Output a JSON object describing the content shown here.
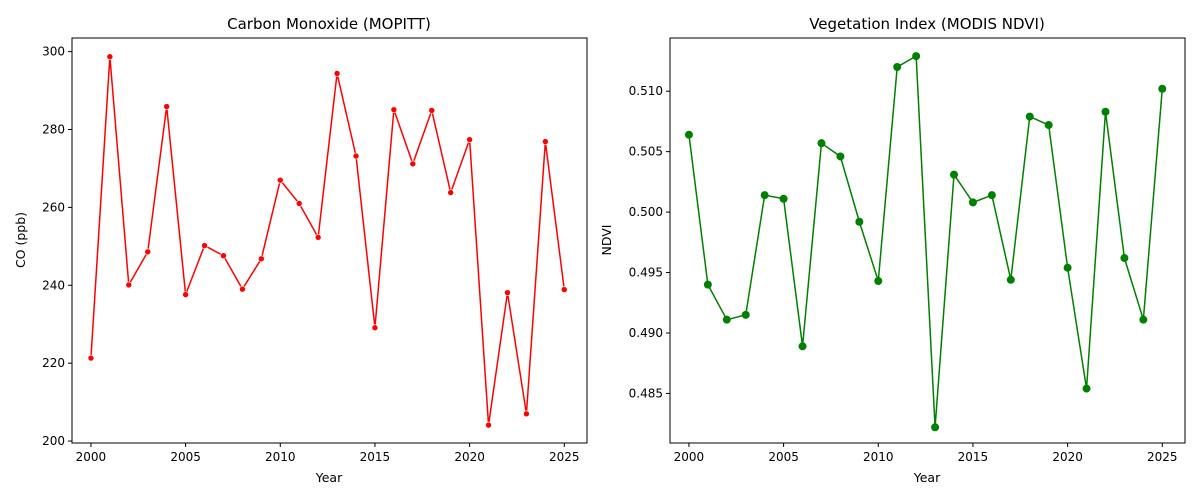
{
  "chart_data": [
    {
      "type": "line",
      "title": "Carbon Monoxide (MOPITT)",
      "xlabel": "Year",
      "ylabel": "CO (ppb)",
      "xlim": [
        1999,
        2026.2
      ],
      "ylim": [
        199.5,
        303.5
      ],
      "xticks": [
        2000,
        2005,
        2010,
        2015,
        2020,
        2025
      ],
      "yticks": [
        200,
        220,
        240,
        260,
        280,
        300
      ],
      "ytick_decimals": 0,
      "color": "#ff0000",
      "marker_radius": 3,
      "grid": false,
      "x": [
        2000,
        2001,
        2002,
        2003,
        2004,
        2005,
        2006,
        2007,
        2008,
        2009,
        2010,
        2011,
        2012,
        2013,
        2014,
        2015,
        2016,
        2017,
        2018,
        2019,
        2020,
        2021,
        2022,
        2023,
        2024,
        2025
      ],
      "y": [
        221.3,
        298.7,
        240.1,
        248.6,
        285.9,
        237.6,
        250.2,
        247.6,
        239.0,
        246.8,
        267.0,
        261.0,
        252.3,
        294.4,
        273.2,
        229.1,
        285.1,
        271.2,
        284.9,
        263.8,
        277.4,
        204.1,
        238.1,
        207.0,
        276.9,
        238.9
      ]
    },
    {
      "type": "line",
      "title": "Vegetation Index (MODIS NDVI)",
      "xlabel": "Year",
      "ylabel": "NDVI",
      "xlim": [
        1999,
        2026.2
      ],
      "ylim": [
        0.4809,
        0.5144
      ],
      "xticks": [
        2000,
        2005,
        2010,
        2015,
        2020,
        2025
      ],
      "yticks": [
        0.485,
        0.49,
        0.495,
        0.5,
        0.505,
        0.51
      ],
      "ytick_decimals": 3,
      "color": "#008000",
      "marker_radius": 4,
      "grid": false,
      "x": [
        2000,
        2001,
        2002,
        2003,
        2004,
        2005,
        2006,
        2007,
        2008,
        2009,
        2010,
        2011,
        2012,
        2013,
        2014,
        2015,
        2016,
        2017,
        2018,
        2019,
        2020,
        2021,
        2022,
        2023,
        2024,
        2025
      ],
      "y": [
        0.5064,
        0.494,
        0.4911,
        0.4915,
        0.5014,
        0.5011,
        0.4889,
        0.5057,
        0.5046,
        0.4992,
        0.4943,
        0.512,
        0.5129,
        0.4822,
        0.5031,
        0.5008,
        0.5014,
        0.4944,
        0.5079,
        0.5072,
        0.4954,
        0.4854,
        0.5083,
        0.4962,
        0.4911,
        0.5102
      ]
    }
  ]
}
